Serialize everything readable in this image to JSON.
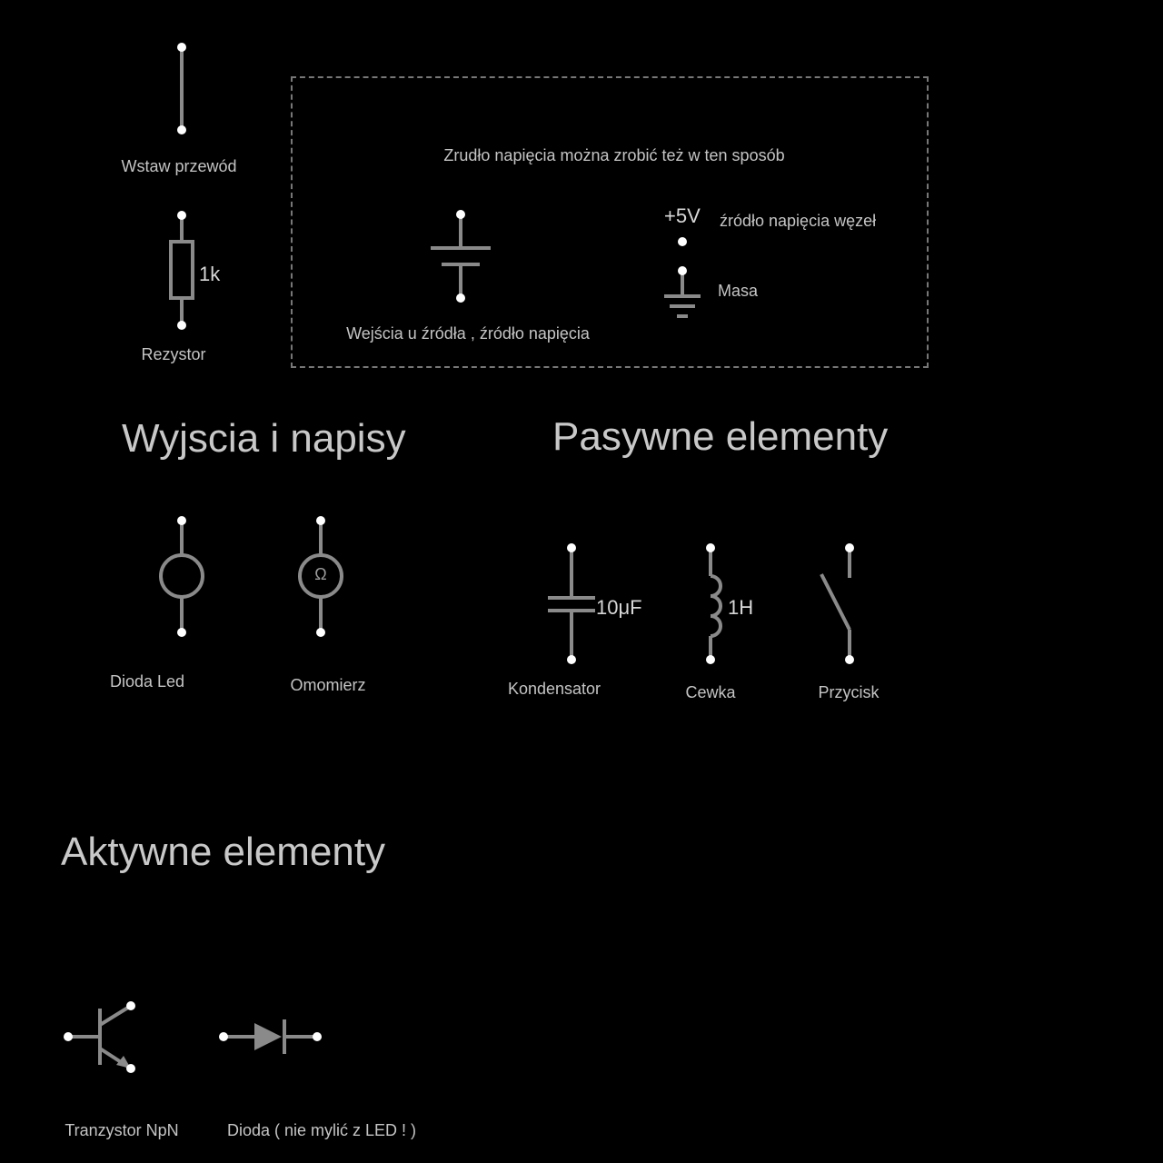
{
  "sections": {
    "outputs_title": "Wyjscia i napisy",
    "passive_title": "Pasywne elementy",
    "active_title": "Aktywne elementy"
  },
  "tools": {
    "wire": "Wstaw przewód",
    "resistor": "Rezystor",
    "resistor_value": "1k"
  },
  "source_box": {
    "title": "Zrudło napięcia można zrobić też w ten sposób",
    "source_label": "Wejścia u źródła , źródło napięcia",
    "vcc_value": "+5V",
    "vcc_label": "źródło napięcia węzeł",
    "ground_label": "Masa"
  },
  "outputs": {
    "led": "Dioda Led",
    "ohmmeter": "Omomierz",
    "ohm_symbol": "Ω"
  },
  "passive": {
    "capacitor": "Kondensator",
    "capacitor_value": "10μF",
    "inductor": "Cewka",
    "inductor_value": "1H",
    "button": "Przycisk"
  },
  "active": {
    "transistor": "Tranzystor NpN",
    "diode": "Dioda ( nie mylić z LED ! )"
  }
}
